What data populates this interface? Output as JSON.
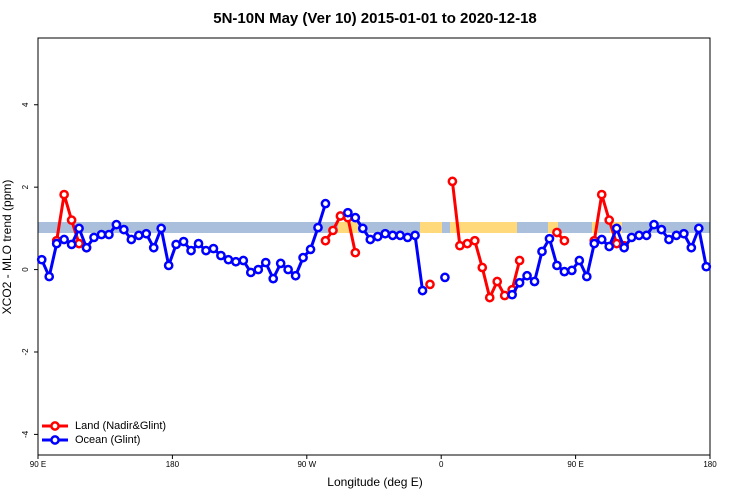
{
  "chart_data": {
    "type": "line",
    "title": "5N-10N May (Ver 10)   2015-01-01 to 2020-12-18",
    "x_label": "Longitude (deg E)",
    "y_label": "XCO2 - MLO trend (ppm)",
    "x": [
      92.5,
      97.5,
      102.5,
      107.5,
      112.5,
      117.5,
      122.5,
      127.5,
      132.5,
      137.5,
      142.5,
      147.5,
      152.5,
      157.5,
      162.5,
      167.5,
      172.5,
      177.5,
      182.5,
      187.5,
      192.5,
      197.5,
      202.5,
      207.5,
      212.5,
      217.5,
      222.5,
      227.5,
      232.5,
      237.5,
      242.5,
      247.5,
      252.5,
      257.5,
      262.5,
      267.5,
      272.5,
      277.5,
      282.5,
      287.5,
      292.5,
      297.5,
      302.5,
      307.5,
      312.5,
      317.5,
      322.5,
      327.5,
      332.5,
      337.5,
      342.5,
      347.5,
      352.5,
      357.5,
      362.5,
      367.5,
      372.5,
      377.5,
      382.5,
      387.5,
      392.5,
      397.5,
      402.5,
      407.5,
      412.5,
      417.5,
      422.5,
      427.5,
      432.5,
      437.5,
      442.5,
      447.5,
      452.5,
      457.5,
      462.5,
      467.5,
      472.5,
      477.5,
      482.5,
      487.5,
      492.5,
      497.5,
      502.5,
      507.5,
      512.5,
      517.5,
      522.5,
      527.5,
      532.5,
      537.5
    ],
    "series": [
      {
        "name": "Land (Nadir&Glint)",
        "color": "#ff0000",
        "values": [
          null,
          null,
          0.7,
          1.82,
          1.2,
          0.63,
          0.53,
          null,
          null,
          null,
          null,
          null,
          null,
          null,
          null,
          null,
          null,
          null,
          null,
          null,
          null,
          null,
          null,
          null,
          null,
          null,
          null,
          null,
          null,
          null,
          null,
          null,
          null,
          null,
          null,
          null,
          null,
          null,
          0.7,
          0.95,
          1.3,
          1.26,
          0.41,
          null,
          null,
          null,
          null,
          null,
          null,
          null,
          null,
          null,
          -0.36,
          null,
          null,
          2.14,
          0.58,
          0.63,
          0.7,
          0.05,
          -0.68,
          -0.29,
          -0.63,
          -0.49,
          0.22,
          null,
          null,
          null,
          null,
          0.9,
          0.7,
          null,
          null,
          null,
          0.7,
          1.82,
          1.2,
          0.63,
          0.58,
          null,
          null,
          null,
          null,
          null,
          null,
          null,
          null,
          null,
          null,
          null
        ]
      },
      {
        "name": "Ocean (Glint)",
        "color": "#0000ff",
        "values": [
          0.24,
          -0.17,
          0.63,
          0.73,
          0.61,
          1.0,
          0.53,
          0.78,
          0.85,
          0.85,
          1.09,
          0.97,
          0.73,
          0.83,
          0.87,
          0.53,
          1.0,
          0.1,
          0.61,
          0.68,
          0.46,
          0.63,
          0.46,
          0.51,
          0.34,
          0.24,
          0.19,
          0.22,
          -0.07,
          0,
          0.17,
          -0.22,
          0.15,
          0,
          -0.15,
          0.29,
          0.49,
          1.02,
          1.6,
          null,
          null,
          1.38,
          1.26,
          1.0,
          0.73,
          0.8,
          0.87,
          0.83,
          0.83,
          0.78,
          0.83,
          -0.51,
          null,
          null,
          -0.19,
          null,
          null,
          null,
          null,
          null,
          null,
          null,
          null,
          -0.61,
          -0.32,
          -0.15,
          -0.29,
          0.44,
          0.75,
          0.1,
          -0.05,
          -0.02,
          0.22,
          -0.17,
          0.63,
          0.73,
          0.56,
          1.0,
          0.53,
          0.78,
          0.83,
          0.83,
          1.09,
          0.97,
          0.73,
          0.83,
          0.87,
          0.53,
          1.0,
          0.07
        ]
      }
    ],
    "xlim": [
      90,
      540
    ],
    "xticks": [
      {
        "value": 90,
        "label": "90 E"
      },
      {
        "value": 180,
        "label": "180"
      },
      {
        "value": 270,
        "label": "90 W"
      },
      {
        "value": 360,
        "label": "0"
      },
      {
        "value": 450,
        "label": "90 E"
      },
      {
        "value": 540,
        "label": "180"
      }
    ],
    "ylim": [
      -4.5,
      5.62
    ],
    "yticks": [
      -4,
      -2,
      0,
      2,
      4
    ],
    "legend": "bottom-left"
  }
}
